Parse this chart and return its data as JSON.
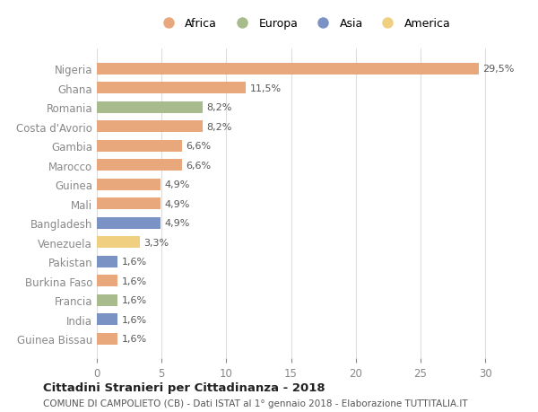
{
  "countries": [
    "Nigeria",
    "Ghana",
    "Romania",
    "Costa d'Avorio",
    "Gambia",
    "Marocco",
    "Guinea",
    "Mali",
    "Bangladesh",
    "Venezuela",
    "Pakistan",
    "Burkina Faso",
    "Francia",
    "India",
    "Guinea Bissau"
  ],
  "values": [
    29.5,
    11.5,
    8.2,
    8.2,
    6.6,
    6.6,
    4.9,
    4.9,
    4.9,
    3.3,
    1.6,
    1.6,
    1.6,
    1.6,
    1.6
  ],
  "labels": [
    "29,5%",
    "11,5%",
    "8,2%",
    "8,2%",
    "6,6%",
    "6,6%",
    "4,9%",
    "4,9%",
    "4,9%",
    "3,3%",
    "1,6%",
    "1,6%",
    "1,6%",
    "1,6%",
    "1,6%"
  ],
  "continents": [
    "Africa",
    "Africa",
    "Europa",
    "Africa",
    "Africa",
    "Africa",
    "Africa",
    "Africa",
    "Asia",
    "America",
    "Asia",
    "Africa",
    "Europa",
    "Asia",
    "Africa"
  ],
  "colors": {
    "Africa": "#E8A87C",
    "Europa": "#A8BB8C",
    "Asia": "#7B93C4",
    "America": "#F0D080"
  },
  "legend_order": [
    "Africa",
    "Europa",
    "Asia",
    "America"
  ],
  "title": "Cittadini Stranieri per Cittadinanza - 2018",
  "subtitle": "COMUNE DI CAMPOLIETO (CB) - Dati ISTAT al 1° gennaio 2018 - Elaborazione TUTTITALIA.IT",
  "xlim": [
    0,
    32
  ],
  "xticks": [
    0,
    5,
    10,
    15,
    20,
    25,
    30
  ],
  "background_color": "#ffffff",
  "grid_color": "#dddddd",
  "bar_height": 0.6
}
